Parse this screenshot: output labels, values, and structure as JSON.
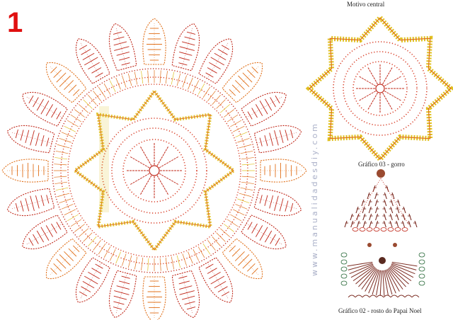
{
  "chart_number": "1",
  "motivo_central": {
    "title": "Motivo central"
  },
  "gorro": {
    "title": "Gráfico 03 - gorro"
  },
  "rosto": {
    "title": "Gráfico 02 - rosto do Papai Noel"
  },
  "watermark": "www.manualidadesdiy.com",
  "colors": {
    "number": "#e01010",
    "red_stitch": "#c0281a",
    "orange_stitch": "#e0701a",
    "yellow_stitch": "#e0c020",
    "ring_dot": "#d8402a",
    "dark_stitch": "#7a2a20",
    "bead": "#5a2a20",
    "brown_bead": "#9a4a30"
  }
}
